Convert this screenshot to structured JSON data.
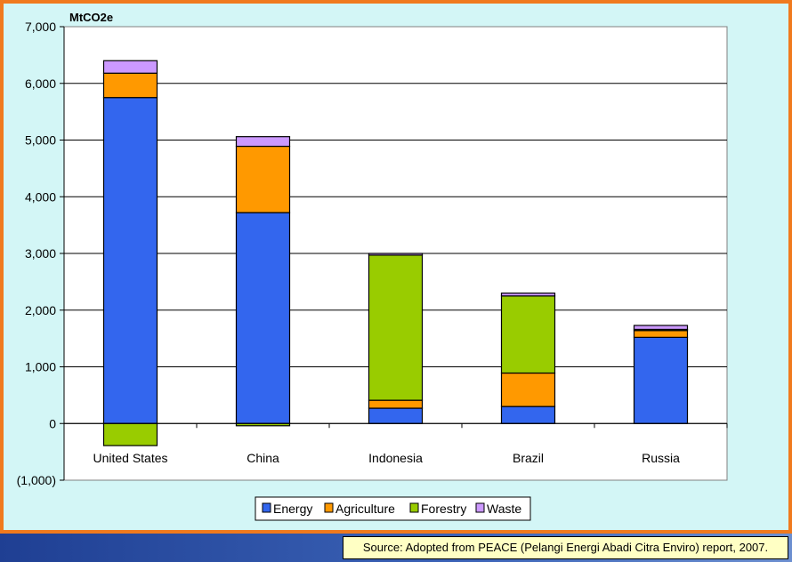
{
  "source_note": "Source: Adopted from PEACE (Pelangi Energi Abadi Citra Enviro) report, 2007.",
  "chart_data": {
    "type": "bar",
    "stacked": true,
    "unit_label": "MtCO2e",
    "categories": [
      "United States",
      "China",
      "Indonesia",
      "Brazil",
      "Russia"
    ],
    "series": [
      {
        "name": "Energy",
        "color": "#3366ee",
        "values": [
          5750,
          3720,
          270,
          300,
          1520
        ]
      },
      {
        "name": "Agriculture",
        "color": "#ff9900",
        "values": [
          430,
          1170,
          140,
          590,
          120
        ]
      },
      {
        "name": "Forestry",
        "color": "#99cc00",
        "values": [
          -390,
          -40,
          2560,
          1360,
          20
        ]
      },
      {
        "name": "Waste",
        "color": "#cc99ff",
        "values": [
          220,
          170,
          30,
          50,
          70
        ]
      }
    ],
    "ylim": [
      -1000,
      7000
    ],
    "yticks": [
      -1000,
      0,
      1000,
      2000,
      3000,
      4000,
      5000,
      6000,
      7000
    ],
    "ytick_labels": [
      "(1,000)",
      "0",
      "1,000",
      "2,000",
      "3,000",
      "4,000",
      "5,000",
      "6,000",
      "7,000"
    ],
    "grid": true,
    "legend_position": "bottom"
  }
}
